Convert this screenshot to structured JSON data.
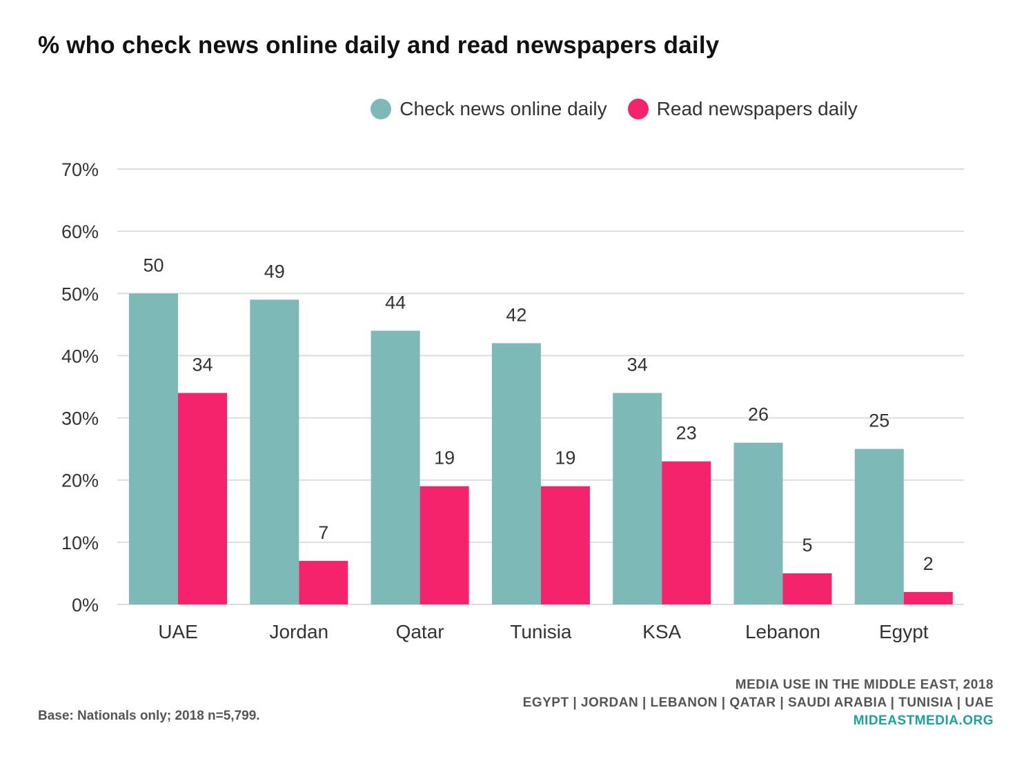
{
  "title": "% who check news online daily and read newspapers daily",
  "colors": {
    "online": "#7db9b7",
    "newspaper": "#f5236b",
    "grid": "#dddddd",
    "axis_text": "#333333"
  },
  "chart_data": {
    "type": "bar",
    "title": "% who check news online daily and read newspapers daily",
    "categories": [
      "UAE",
      "Jordan",
      "Qatar",
      "Tunisia",
      "KSA",
      "Lebanon",
      "Egypt"
    ],
    "series": [
      {
        "name": "Check news online daily",
        "values": [
          50,
          49,
          44,
          42,
          34,
          26,
          25
        ]
      },
      {
        "name": "Read newspapers daily",
        "values": [
          34,
          7,
          19,
          19,
          23,
          5,
          2
        ]
      }
    ],
    "yticks": [
      "0%",
      "10%",
      "20%",
      "30%",
      "40%",
      "50%",
      "60%",
      "70%"
    ],
    "ylim": [
      0,
      70
    ],
    "grid": true,
    "legend": "top-center"
  },
  "footer": {
    "base_note": "Base: Nationals only; 2018 n=5,799.",
    "source_line1": "MEDIA USE IN THE MIDDLE EAST, 2018",
    "source_line2": "EGYPT | JORDAN | LEBANON | QATAR | SAUDI ARABIA | TUNISIA | UAE",
    "url": "MIDEASTMEDIA.ORG"
  }
}
